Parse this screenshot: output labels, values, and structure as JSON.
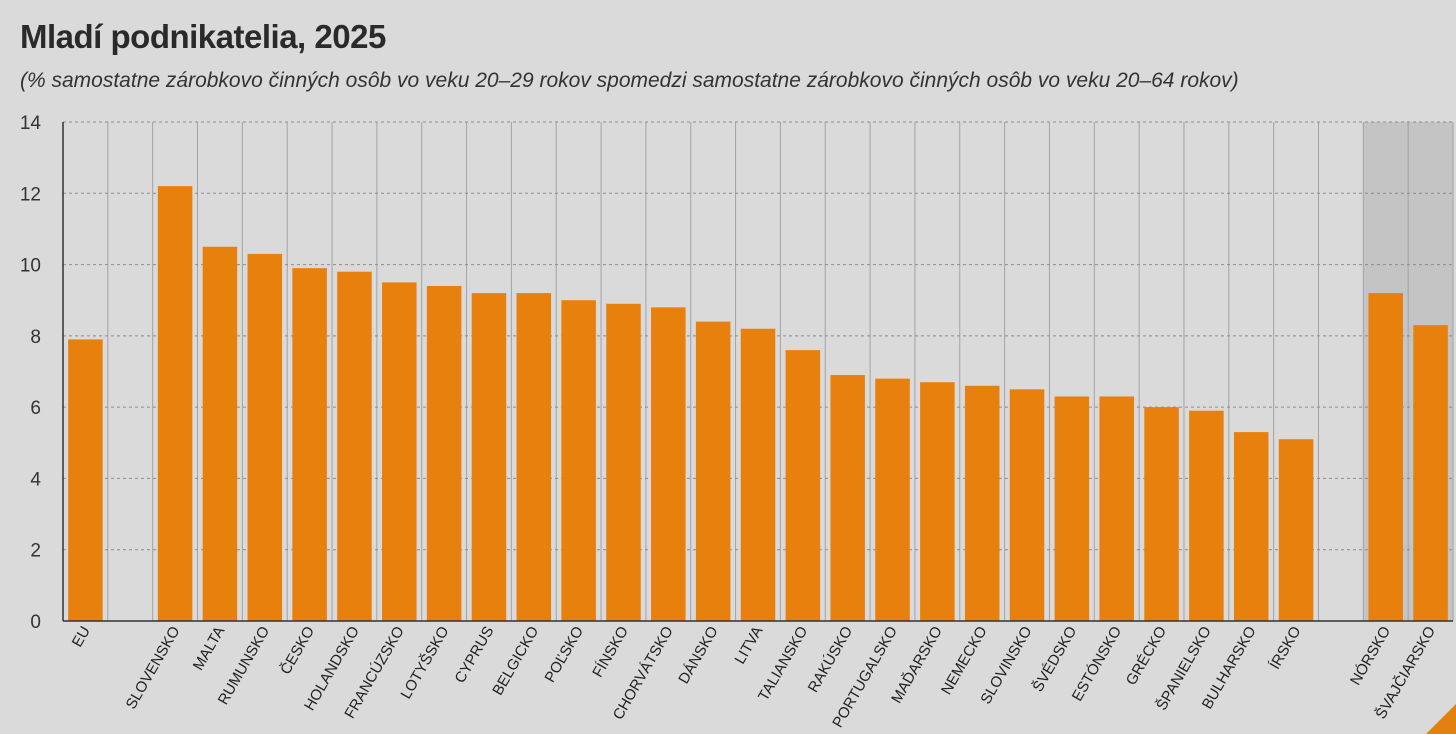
{
  "title": "Mladí podnikatelia, 2025",
  "subtitle": "(% samostatne zárobkovo činných osôb vo veku 20–29 rokov spomedzi samostatne zárobkovo činných osôb vo veku 20–64 rokov)",
  "colors": {
    "bar": "#e8800e",
    "background": "#dadada",
    "highlight_band": "#c4c4c4",
    "grid": "#8c8c8c",
    "axis": "#333333"
  },
  "chart_data": {
    "type": "bar",
    "title": "Mladí podnikatelia, 2025",
    "subtitle": "(% samostatne zárobkovo činných osôb vo veku 20–29 rokov spomedzi samostatne zárobkovo činných osôb vo veku 20–64 rokov)",
    "xlabel": "",
    "ylabel": "",
    "ylim": [
      0,
      14
    ],
    "yticks": [
      0,
      2,
      4,
      6,
      8,
      10,
      12,
      14
    ],
    "grid": true,
    "categories": [
      "EU",
      "",
      "SLOVENSKO",
      "MALTA",
      "RUMUNSKO",
      "ČESKO",
      "HOLANDSKO",
      "FRANCÚZSKO",
      "LOTYŠSKO",
      "CYPRUS",
      "BELGICKO",
      "POĽSKO",
      "FÍNSKO",
      "CHORVÁTSKO",
      "DÁNSKO",
      "LITVA",
      "TALIANSKO",
      "RAKÚSKO",
      "PORTUGALSKO",
      "MAĎARSKO",
      "NEMECKO",
      "SLOVINSKO",
      "ŠVÉDSKO",
      "ESTÓNSKO",
      "GRÉCKO",
      "ŠPANIELSKO",
      "BULHARSKO",
      "ÍRSKO",
      "",
      "NÓRSKO",
      "ŠVAJČIARSKO"
    ],
    "values": [
      7.9,
      null,
      12.2,
      10.5,
      10.3,
      9.9,
      9.8,
      9.5,
      9.4,
      9.2,
      9.2,
      9.0,
      8.9,
      8.8,
      8.4,
      8.2,
      7.6,
      6.9,
      6.8,
      6.7,
      6.6,
      6.5,
      6.3,
      6.3,
      6.0,
      5.9,
      5.3,
      5.1,
      null,
      9.2,
      8.3
    ],
    "highlighted_categories": [
      "NÓRSKO",
      "ŠVAJČIARSKO"
    ]
  }
}
